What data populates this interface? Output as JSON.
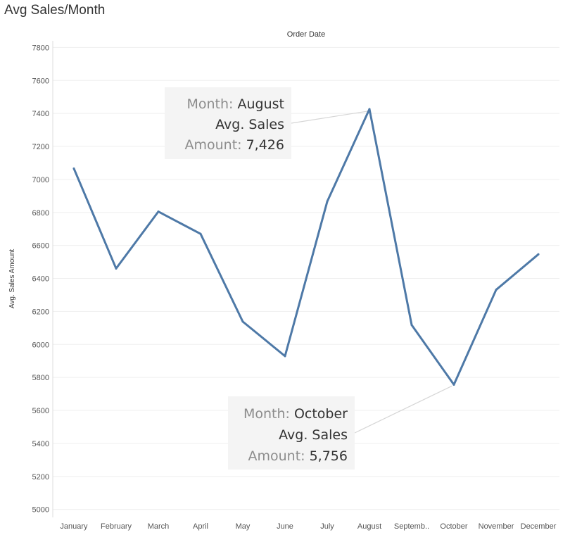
{
  "chart_data": {
    "type": "line",
    "title": "Avg Sales/Month",
    "top_label": "Order Date",
    "ylabel": "Avg. Sales Amount",
    "xlabel": "",
    "categories": [
      "January",
      "February",
      "March",
      "April",
      "May",
      "June",
      "July",
      "August",
      "Septemb..",
      "October",
      "November",
      "December"
    ],
    "series": [
      {
        "values": [
          7066,
          6460,
          6805,
          6670,
          6138,
          5929,
          6866,
          7426,
          6118,
          5756,
          6331,
          6546
        ],
        "color": "#4e79a7"
      }
    ],
    "ylim": [
      4960,
      7840
    ],
    "yticks": [
      5000,
      5200,
      5400,
      5600,
      5800,
      6000,
      6200,
      6400,
      6600,
      6800,
      7000,
      7200,
      7400,
      7600,
      7800
    ],
    "grid": true,
    "annotations": [
      {
        "point_index": 7,
        "lines": [
          {
            "key": "Month:",
            "value": "August"
          },
          {
            "key": "",
            "value": "Avg. Sales"
          },
          {
            "key": "Amount:",
            "value": "7,426"
          }
        ]
      },
      {
        "point_index": 9,
        "lines": [
          {
            "key": "Month:",
            "value": "October"
          },
          {
            "key": "",
            "value": "Avg. Sales"
          },
          {
            "key": "Amount:",
            "value": "5,756"
          }
        ]
      }
    ]
  }
}
